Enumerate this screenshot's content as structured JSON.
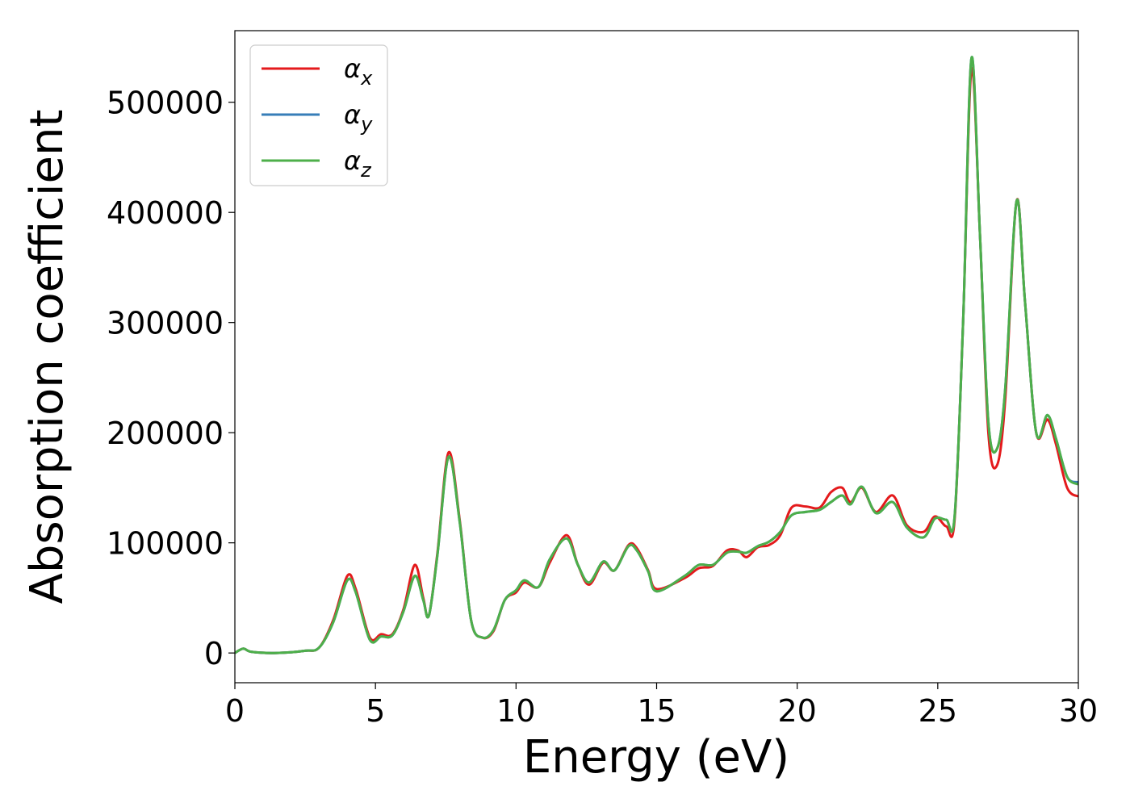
{
  "chart_data": {
    "type": "line",
    "title": "",
    "xlabel": "Energy (eV)",
    "ylabel": "Absorption coefficient",
    "xlim": [
      0,
      30
    ],
    "ylim": [
      -27000,
      565000
    ],
    "x_ticks": [
      0,
      5,
      10,
      15,
      20,
      25,
      30
    ],
    "x_tick_labels": [
      "0",
      "5",
      "10",
      "15",
      "20",
      "25",
      "30"
    ],
    "y_ticks": [
      0,
      100000,
      200000,
      300000,
      400000,
      500000
    ],
    "y_tick_labels": [
      "0",
      "100000",
      "200000",
      "300000",
      "400000",
      "500000"
    ],
    "grid": false,
    "legend_position": "top-left",
    "series": [
      {
        "name": "αx",
        "name_base": "α",
        "name_sub": "x",
        "color": "#e41a1c",
        "points": [
          [
            0,
            0
          ],
          [
            0.3,
            4000
          ],
          [
            0.6,
            1000
          ],
          [
            1.5,
            0
          ],
          [
            2.5,
            2000
          ],
          [
            3.0,
            5000
          ],
          [
            3.5,
            30000
          ],
          [
            4.0,
            70000
          ],
          [
            4.3,
            58000
          ],
          [
            4.8,
            14000
          ],
          [
            5.2,
            17000
          ],
          [
            5.6,
            17000
          ],
          [
            6.0,
            40000
          ],
          [
            6.4,
            80000
          ],
          [
            6.7,
            50000
          ],
          [
            6.9,
            34000
          ],
          [
            7.2,
            90000
          ],
          [
            7.6,
            182000
          ],
          [
            8.0,
            120000
          ],
          [
            8.4,
            30000
          ],
          [
            8.8,
            14000
          ],
          [
            9.2,
            20000
          ],
          [
            9.6,
            48000
          ],
          [
            10.0,
            55000
          ],
          [
            10.3,
            64000
          ],
          [
            10.8,
            60000
          ],
          [
            11.2,
            82000
          ],
          [
            11.8,
            107000
          ],
          [
            12.2,
            80000
          ],
          [
            12.6,
            62000
          ],
          [
            13.1,
            82000
          ],
          [
            13.5,
            75000
          ],
          [
            14.0,
            98000
          ],
          [
            14.3,
            95000
          ],
          [
            14.7,
            75000
          ],
          [
            15.0,
            58000
          ],
          [
            16.0,
            68000
          ],
          [
            16.5,
            77000
          ],
          [
            17.0,
            79000
          ],
          [
            17.5,
            93000
          ],
          [
            17.9,
            93000
          ],
          [
            18.2,
            87000
          ],
          [
            18.6,
            96000
          ],
          [
            19.0,
            98000
          ],
          [
            19.4,
            107000
          ],
          [
            19.8,
            132000
          ],
          [
            20.3,
            133000
          ],
          [
            20.8,
            132000
          ],
          [
            21.2,
            146000
          ],
          [
            21.6,
            150000
          ],
          [
            21.9,
            137000
          ],
          [
            22.3,
            150000
          ],
          [
            22.8,
            128000
          ],
          [
            23.4,
            143000
          ],
          [
            23.9,
            116000
          ],
          [
            24.5,
            110000
          ],
          [
            24.9,
            124000
          ],
          [
            25.3,
            115000
          ],
          [
            25.6,
            121000
          ],
          [
            25.9,
            300000
          ],
          [
            26.2,
            530000
          ],
          [
            26.5,
            380000
          ],
          [
            26.8,
            200000
          ],
          [
            27.1,
            170000
          ],
          [
            27.4,
            230000
          ],
          [
            27.8,
            410000
          ],
          [
            28.1,
            320000
          ],
          [
            28.5,
            200000
          ],
          [
            28.9,
            212000
          ],
          [
            29.2,
            190000
          ],
          [
            29.6,
            150000
          ],
          [
            30.0,
            142000
          ]
        ]
      },
      {
        "name": "αy",
        "name_base": "α",
        "name_sub": "y",
        "color": "#377eb8",
        "points": [
          [
            0,
            0
          ],
          [
            0.3,
            4000
          ],
          [
            0.6,
            1000
          ],
          [
            1.5,
            0
          ],
          [
            2.5,
            2000
          ],
          [
            3.0,
            5000
          ],
          [
            3.5,
            28000
          ],
          [
            4.0,
            66000
          ],
          [
            4.3,
            55000
          ],
          [
            4.8,
            12000
          ],
          [
            5.2,
            15000
          ],
          [
            5.6,
            16000
          ],
          [
            6.0,
            38000
          ],
          [
            6.4,
            70000
          ],
          [
            6.7,
            48000
          ],
          [
            6.9,
            34000
          ],
          [
            7.2,
            88000
          ],
          [
            7.6,
            178000
          ],
          [
            8.0,
            118000
          ],
          [
            8.4,
            30000
          ],
          [
            8.8,
            14000
          ],
          [
            9.2,
            21000
          ],
          [
            9.6,
            48000
          ],
          [
            10.0,
            57000
          ],
          [
            10.3,
            66000
          ],
          [
            10.8,
            60000
          ],
          [
            11.2,
            85000
          ],
          [
            11.8,
            104000
          ],
          [
            12.2,
            80000
          ],
          [
            12.6,
            64000
          ],
          [
            13.1,
            83000
          ],
          [
            13.5,
            75000
          ],
          [
            14.0,
            97000
          ],
          [
            14.3,
            93000
          ],
          [
            14.7,
            74000
          ],
          [
            15.0,
            56000
          ],
          [
            16.0,
            70000
          ],
          [
            16.5,
            80000
          ],
          [
            17.0,
            80000
          ],
          [
            17.5,
            91000
          ],
          [
            17.9,
            92000
          ],
          [
            18.2,
            91000
          ],
          [
            18.6,
            97000
          ],
          [
            19.0,
            101000
          ],
          [
            19.4,
            110000
          ],
          [
            19.8,
            125000
          ],
          [
            20.3,
            128000
          ],
          [
            20.8,
            130000
          ],
          [
            21.2,
            137000
          ],
          [
            21.6,
            143000
          ],
          [
            21.9,
            135000
          ],
          [
            22.3,
            151000
          ],
          [
            22.8,
            127000
          ],
          [
            23.4,
            137000
          ],
          [
            23.9,
            114000
          ],
          [
            24.5,
            105000
          ],
          [
            24.9,
            122000
          ],
          [
            25.3,
            121000
          ],
          [
            25.6,
            124000
          ],
          [
            25.9,
            300000
          ],
          [
            26.2,
            540000
          ],
          [
            26.5,
            380000
          ],
          [
            26.8,
            210000
          ],
          [
            27.1,
            185000
          ],
          [
            27.4,
            240000
          ],
          [
            27.8,
            410000
          ],
          [
            28.1,
            320000
          ],
          [
            28.5,
            200000
          ],
          [
            28.9,
            216000
          ],
          [
            29.2,
            195000
          ],
          [
            29.6,
            160000
          ],
          [
            30.0,
            155000
          ]
        ]
      },
      {
        "name": "αz",
        "name_base": "α",
        "name_sub": "z",
        "color": "#4daf4a",
        "points": [
          [
            0,
            0
          ],
          [
            0.3,
            4000
          ],
          [
            0.6,
            1000
          ],
          [
            1.5,
            0
          ],
          [
            2.5,
            2000
          ],
          [
            3.0,
            5000
          ],
          [
            3.5,
            28000
          ],
          [
            4.0,
            66000
          ],
          [
            4.3,
            55000
          ],
          [
            4.8,
            12000
          ],
          [
            5.2,
            15000
          ],
          [
            5.6,
            16000
          ],
          [
            6.0,
            38000
          ],
          [
            6.4,
            70000
          ],
          [
            6.7,
            48000
          ],
          [
            6.9,
            34000
          ],
          [
            7.2,
            88000
          ],
          [
            7.6,
            178000
          ],
          [
            8.0,
            118000
          ],
          [
            8.4,
            30000
          ],
          [
            8.8,
            14000
          ],
          [
            9.2,
            21000
          ],
          [
            9.6,
            48000
          ],
          [
            10.0,
            57000
          ],
          [
            10.3,
            66000
          ],
          [
            10.8,
            60000
          ],
          [
            11.2,
            85000
          ],
          [
            11.8,
            104000
          ],
          [
            12.2,
            80000
          ],
          [
            12.6,
            64000
          ],
          [
            13.1,
            83000
          ],
          [
            13.5,
            75000
          ],
          [
            14.0,
            97000
          ],
          [
            14.3,
            93000
          ],
          [
            14.7,
            74000
          ],
          [
            15.0,
            56000
          ],
          [
            16.0,
            70000
          ],
          [
            16.5,
            80000
          ],
          [
            17.0,
            80000
          ],
          [
            17.5,
            91000
          ],
          [
            17.9,
            92000
          ],
          [
            18.2,
            91000
          ],
          [
            18.6,
            97000
          ],
          [
            19.0,
            101000
          ],
          [
            19.4,
            110000
          ],
          [
            19.8,
            125000
          ],
          [
            20.3,
            128000
          ],
          [
            20.8,
            130000
          ],
          [
            21.2,
            137000
          ],
          [
            21.6,
            143000
          ],
          [
            21.9,
            135000
          ],
          [
            22.3,
            151000
          ],
          [
            22.8,
            127000
          ],
          [
            23.4,
            137000
          ],
          [
            23.9,
            114000
          ],
          [
            24.5,
            105000
          ],
          [
            24.9,
            122000
          ],
          [
            25.3,
            121000
          ],
          [
            25.6,
            124000
          ],
          [
            25.9,
            300000
          ],
          [
            26.2,
            540000
          ],
          [
            26.5,
            380000
          ],
          [
            26.8,
            210000
          ],
          [
            27.1,
            185000
          ],
          [
            27.4,
            240000
          ],
          [
            27.8,
            410000
          ],
          [
            28.1,
            320000
          ],
          [
            28.5,
            200000
          ],
          [
            28.9,
            216000
          ],
          [
            29.2,
            195000
          ],
          [
            29.6,
            160000
          ],
          [
            30.0,
            153000
          ]
        ]
      }
    ]
  }
}
